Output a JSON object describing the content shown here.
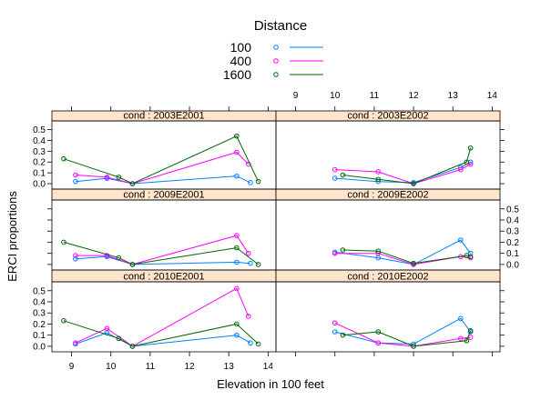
{
  "chart_data": {
    "type": "line",
    "legend": {
      "title": "Distance",
      "placement": "top",
      "entries": [
        {
          "label": "100",
          "color": "#0080ff"
        },
        {
          "label": "400",
          "color": "#ff00ff"
        },
        {
          "label": "1600",
          "color": "#006400"
        }
      ]
    },
    "xlabel": "Elevation in 100 feet",
    "ylabel": "ERCI proportions",
    "xlim": [
      8.5,
      14.2
    ],
    "ylim": [
      -0.05,
      0.58
    ],
    "xticks": [
      9,
      10,
      11,
      12,
      13,
      14
    ],
    "yticks": [
      0.0,
      0.1,
      0.2,
      0.3,
      0.4,
      0.5
    ],
    "xtick_labels": [
      "9",
      "10",
      "11",
      "12",
      "13",
      "14"
    ],
    "ytick_labels": [
      "0.0",
      "0.1",
      "0.2",
      "0.3",
      "0.4",
      "0.5"
    ],
    "strip_color": "#ffe5cc",
    "panels": [
      {
        "title": "cond : 2010E2001",
        "series": [
          {
            "name": "100",
            "x": [
              9.1,
              9.9,
              10.55,
              13.2,
              13.55
            ],
            "y": [
              0.02,
              0.12,
              0.0,
              0.1,
              0.03
            ]
          },
          {
            "name": "400",
            "x": [
              9.1,
              9.9,
              10.55,
              13.2,
              13.5
            ],
            "y": [
              0.03,
              0.16,
              0.0,
              0.52,
              0.27
            ]
          },
          {
            "name": "1600",
            "x": [
              8.8,
              10.2,
              10.55,
              13.2,
              13.75
            ],
            "y": [
              0.23,
              0.07,
              0.0,
              0.2,
              0.02
            ]
          }
        ]
      },
      {
        "title": "cond : 2010E2002",
        "series": [
          {
            "name": "100",
            "x": [
              10.0,
              11.1,
              12.0,
              13.2,
              13.45
            ],
            "y": [
              0.13,
              0.03,
              0.02,
              0.25,
              0.13
            ]
          },
          {
            "name": "400",
            "x": [
              10.0,
              11.1,
              12.0,
              13.2,
              13.45
            ],
            "y": [
              0.21,
              0.03,
              0.0,
              0.07,
              0.08
            ]
          },
          {
            "name": "1600",
            "x": [
              10.2,
              11.1,
              12.0,
              13.35,
              13.45
            ],
            "y": [
              0.1,
              0.13,
              0.0,
              0.05,
              0.14
            ]
          }
        ]
      },
      {
        "title": "cond : 2009E2001",
        "series": [
          {
            "name": "100",
            "x": [
              9.1,
              9.9,
              10.55,
              13.2,
              13.55
            ],
            "y": [
              0.05,
              0.07,
              0.0,
              0.02,
              0.01
            ]
          },
          {
            "name": "400",
            "x": [
              9.1,
              9.9,
              10.55,
              13.2,
              13.5
            ],
            "y": [
              0.08,
              0.08,
              0.0,
              0.26,
              0.1
            ]
          },
          {
            "name": "1600",
            "x": [
              8.8,
              10.2,
              10.55,
              13.2,
              13.75
            ],
            "y": [
              0.2,
              0.06,
              0.0,
              0.15,
              0.0
            ]
          }
        ]
      },
      {
        "title": "cond : 2009E2002",
        "series": [
          {
            "name": "100",
            "x": [
              10.0,
              11.1,
              12.0,
              13.2,
              13.45
            ],
            "y": [
              0.11,
              0.06,
              0.0,
              0.22,
              0.1
            ]
          },
          {
            "name": "400",
            "x": [
              10.0,
              11.1,
              12.0,
              13.2,
              13.45
            ],
            "y": [
              0.1,
              0.1,
              0.0,
              0.07,
              0.06
            ]
          },
          {
            "name": "1600",
            "x": [
              10.2,
              11.1,
              12.0,
              13.35,
              13.45
            ],
            "y": [
              0.13,
              0.12,
              0.01,
              0.08,
              0.07
            ]
          }
        ]
      },
      {
        "title": "cond : 2003E2001",
        "series": [
          {
            "name": "100",
            "x": [
              9.1,
              9.9,
              10.55,
              13.2,
              13.55
            ],
            "y": [
              0.02,
              0.05,
              0.0,
              0.07,
              0.01
            ]
          },
          {
            "name": "400",
            "x": [
              9.1,
              9.9,
              10.55,
              13.2,
              13.5
            ],
            "y": [
              0.08,
              0.06,
              0.0,
              0.29,
              0.18
            ]
          },
          {
            "name": "1600",
            "x": [
              8.8,
              10.2,
              10.55,
              13.2,
              13.75
            ],
            "y": [
              0.23,
              0.06,
              0.0,
              0.44,
              0.02
            ]
          }
        ]
      },
      {
        "title": "cond : 2003E2002",
        "series": [
          {
            "name": "100",
            "x": [
              10.0,
              11.1,
              12.0,
              13.2,
              13.45
            ],
            "y": [
              0.05,
              0.02,
              0.01,
              0.15,
              0.2
            ]
          },
          {
            "name": "400",
            "x": [
              10.0,
              11.1,
              12.0,
              13.2,
              13.45
            ],
            "y": [
              0.13,
              0.11,
              0.0,
              0.13,
              0.18
            ]
          },
          {
            "name": "1600",
            "x": [
              10.2,
              11.1,
              12.0,
              13.35,
              13.45
            ],
            "y": [
              0.08,
              0.04,
              0.0,
              0.2,
              0.33
            ]
          }
        ]
      }
    ]
  }
}
